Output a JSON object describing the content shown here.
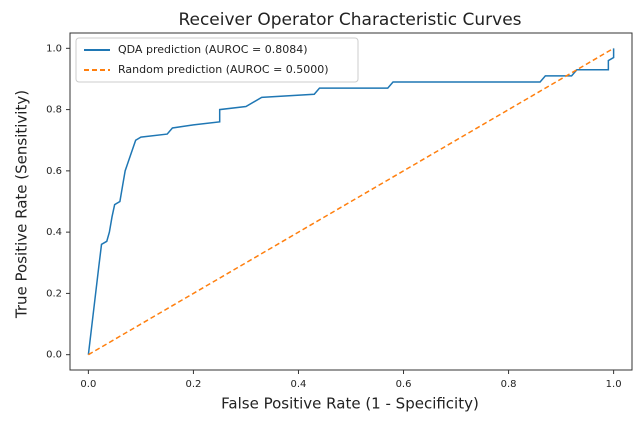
{
  "chart_data": {
    "type": "line",
    "title": "Receiver Operator Characteristic Curves",
    "x_label": "False Positive Rate (1 - Specificity)",
    "y_label": "True Positive Rate (Sensitivity)",
    "xlim": [
      -0.035,
      1.035
    ],
    "ylim": [
      -0.05,
      1.05
    ],
    "xticks": [
      {
        "value": 0,
        "label": "0.0"
      },
      {
        "value": 0.2,
        "label": "0.2"
      },
      {
        "value": 0.4,
        "label": "0.4"
      },
      {
        "value": 0.6,
        "label": "0.6"
      },
      {
        "value": 0.8,
        "label": "0.8"
      },
      {
        "value": 1,
        "label": "1.0"
      }
    ],
    "yticks": [
      {
        "value": 0,
        "label": "0.0"
      },
      {
        "value": 0.2,
        "label": "0.2"
      },
      {
        "value": 0.4,
        "label": "0.4"
      },
      {
        "value": 0.6,
        "label": "0.6"
      },
      {
        "value": 0.8,
        "label": "0.8"
      },
      {
        "value": 1,
        "label": "1.0"
      }
    ],
    "legend": "upper left",
    "series": [
      {
        "name": "QDA prediction (AUROC = 0.8084)",
        "color": "#1f77b4",
        "style": "solid",
        "x": [
          0,
          0.02,
          0.025,
          0.035,
          0.04,
          0.045,
          0.05,
          0.06,
          0.065,
          0.07,
          0.08,
          0.09,
          0.1,
          0.15,
          0.16,
          0.2,
          0.25,
          0.25,
          0.3,
          0.33,
          0.43,
          0.44,
          0.57,
          0.58,
          0.86,
          0.87,
          0.92,
          0.93,
          0.99,
          0.99,
          1.0,
          1.0
        ],
        "values": [
          0,
          0.29,
          0.36,
          0.37,
          0.4,
          0.45,
          0.49,
          0.5,
          0.55,
          0.6,
          0.65,
          0.7,
          0.71,
          0.72,
          0.74,
          0.75,
          0.76,
          0.8,
          0.81,
          0.84,
          0.85,
          0.87,
          0.87,
          0.89,
          0.89,
          0.91,
          0.91,
          0.93,
          0.93,
          0.96,
          0.97,
          1.0
        ]
      },
      {
        "name": "Random prediction (AUROC = 0.5000)",
        "color": "#ff7f0e",
        "style": "dashed",
        "x": [
          0,
          1
        ],
        "values": [
          0,
          1
        ]
      }
    ]
  }
}
